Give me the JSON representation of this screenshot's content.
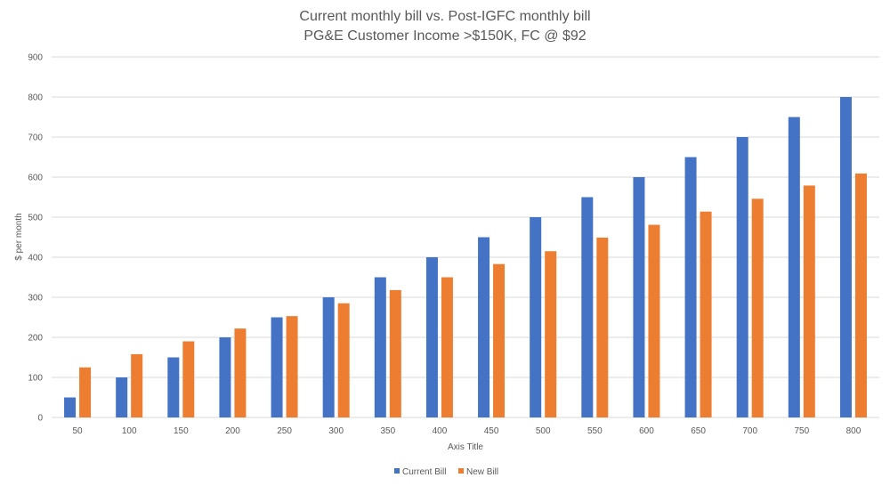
{
  "chart_data": {
    "type": "bar",
    "title": "Current monthly bill vs. Post-IGFC monthly bill",
    "subtitle": "PG&E Customer Income >$150K, FC @ $92",
    "xlabel": "Axis Title",
    "ylabel": "$ per month",
    "ylim": [
      0,
      900
    ],
    "yticks": [
      0,
      100,
      200,
      300,
      400,
      500,
      600,
      700,
      800,
      900
    ],
    "grid": true,
    "legend_position": "bottom",
    "categories": [
      "50",
      "100",
      "150",
      "200",
      "250",
      "300",
      "350",
      "400",
      "450",
      "500",
      "550",
      "600",
      "650",
      "700",
      "750",
      "800"
    ],
    "series": [
      {
        "name": "Current Bill",
        "color": "#4472c4",
        "values": [
          50,
          100,
          150,
          200,
          250,
          300,
          350,
          400,
          450,
          500,
          550,
          600,
          650,
          700,
          750,
          800
        ]
      },
      {
        "name": "New Bill",
        "color": "#ed7d31",
        "values": [
          125,
          158,
          190,
          222,
          253,
          285,
          318,
          350,
          383,
          415,
          449,
          481,
          514,
          546,
          579,
          609
        ]
      }
    ]
  }
}
